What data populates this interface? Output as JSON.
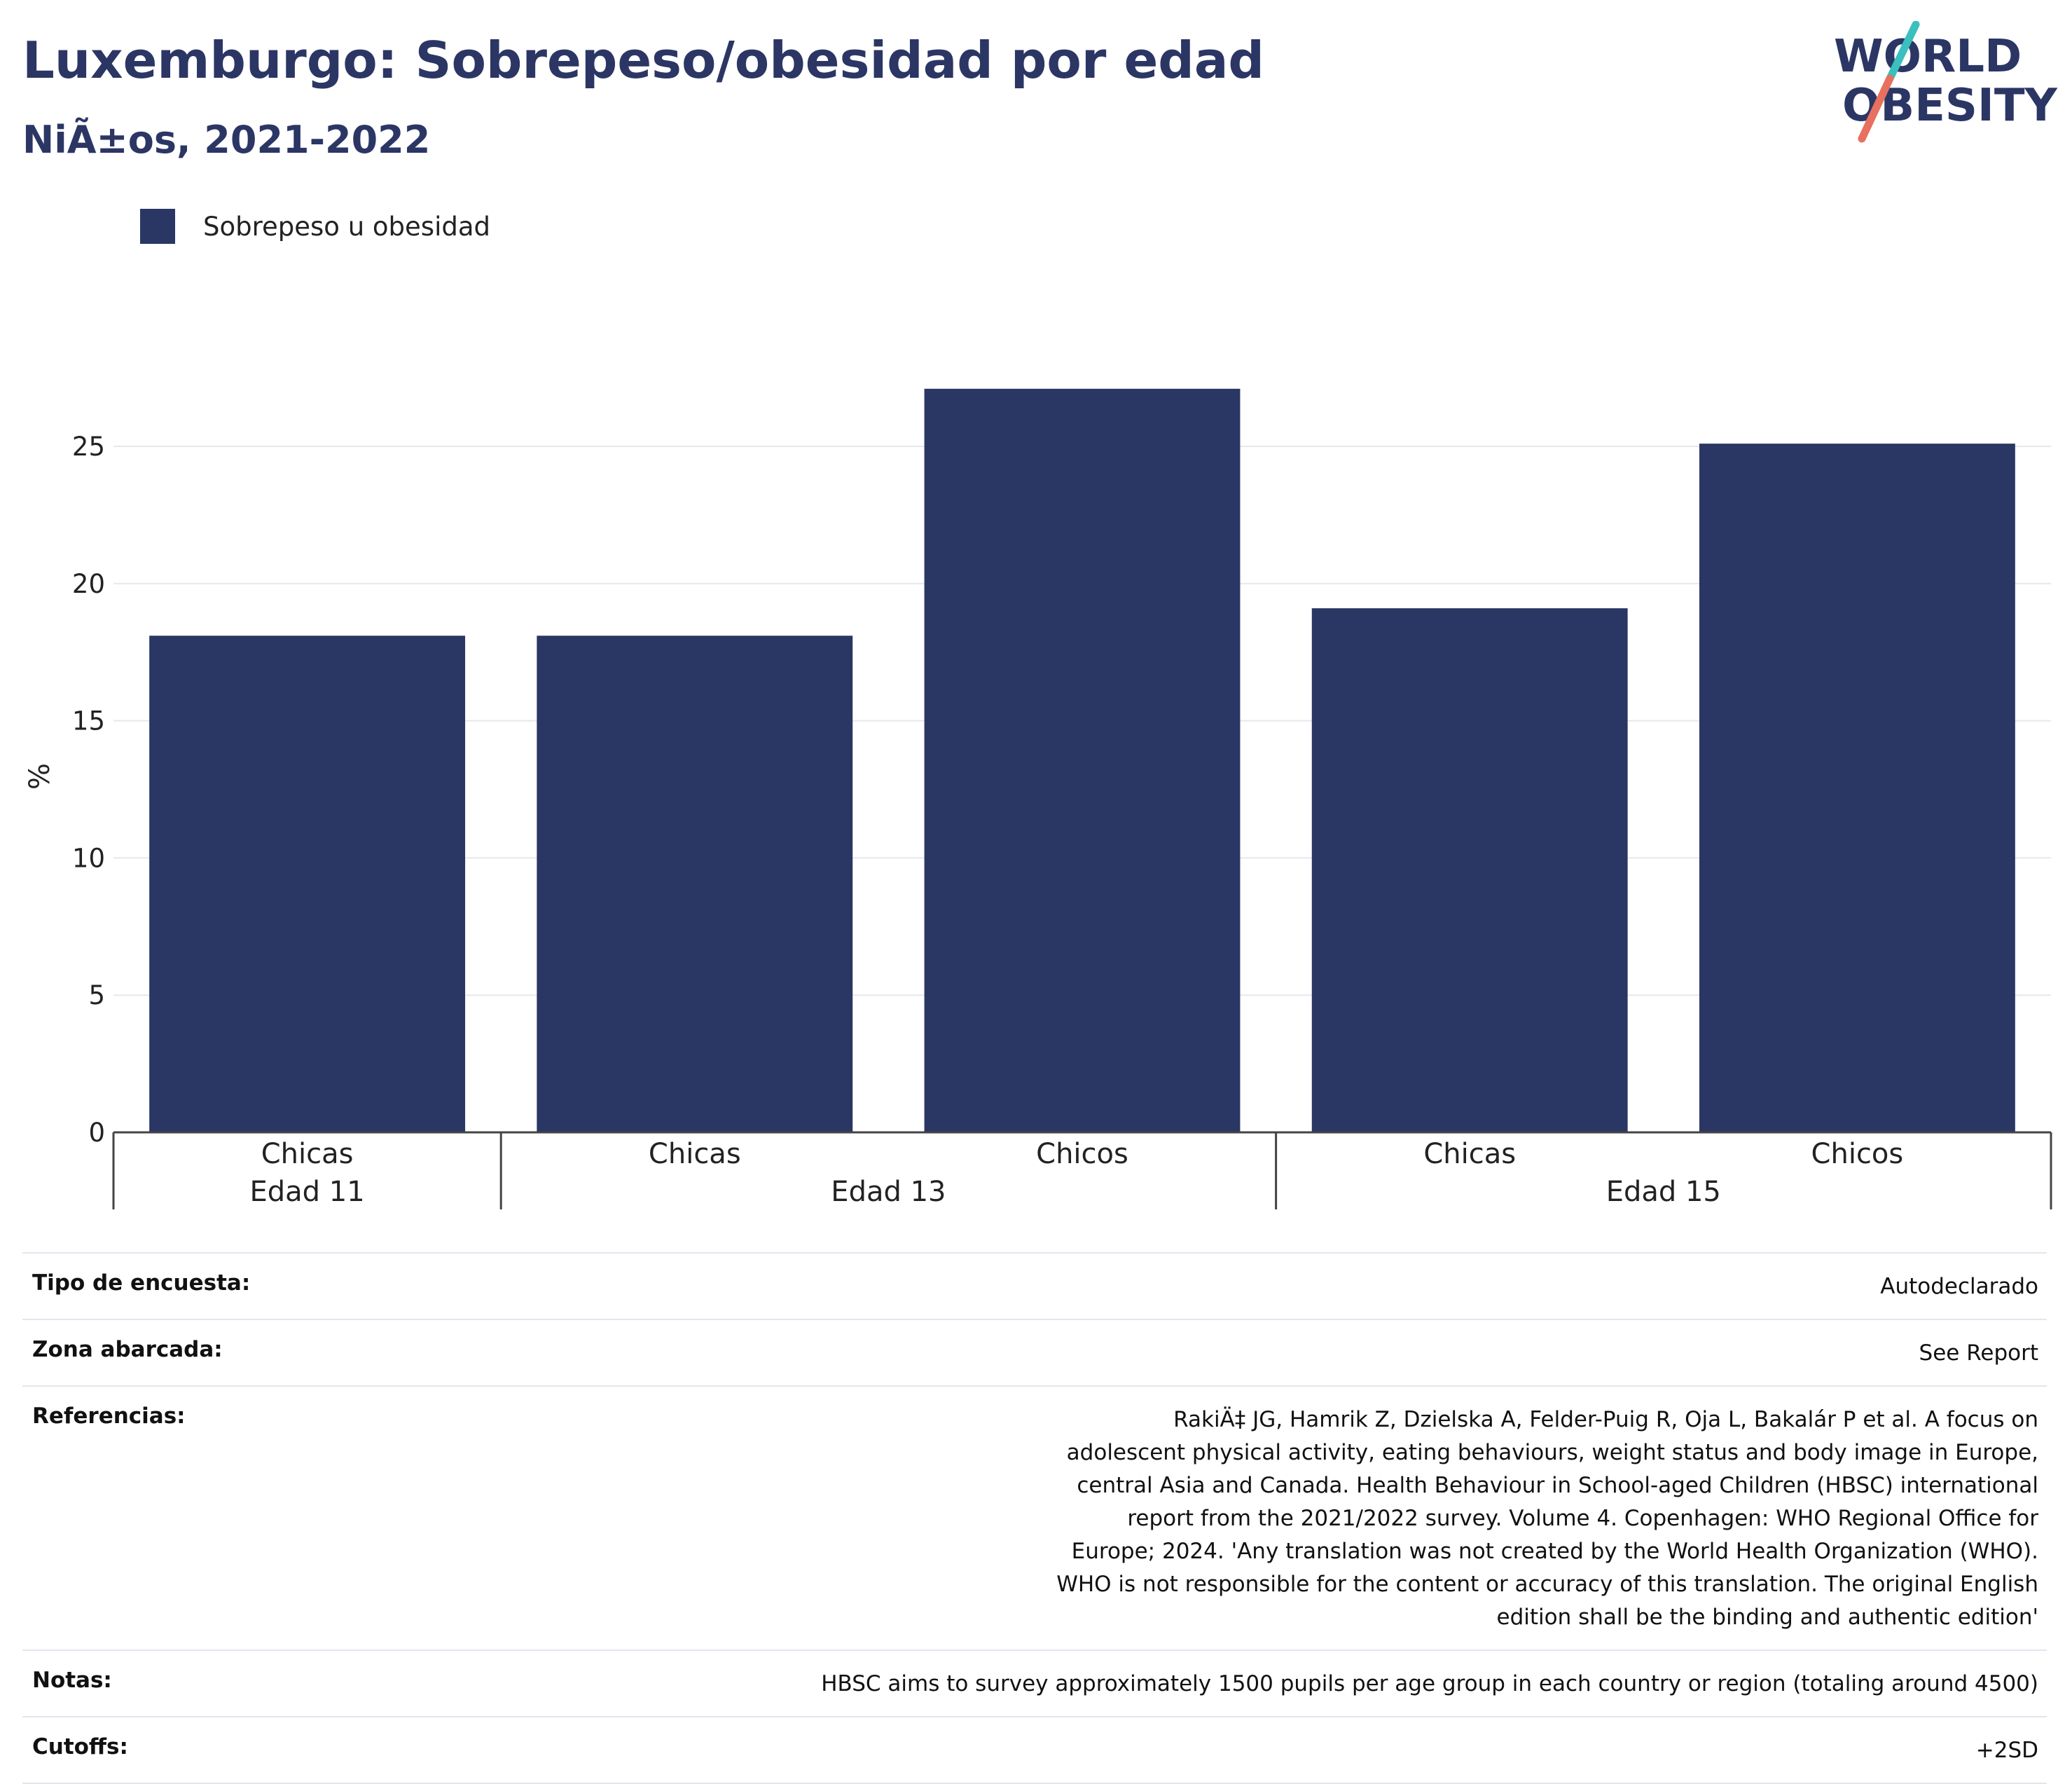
{
  "header": {
    "title": "Luxemburgo: Sobrepeso/obesidad por edad",
    "subtitle": "NiÃ±os, 2021-2022"
  },
  "logo": {
    "line1": "WORLD",
    "line2": "OBESITY",
    "colors": {
      "text": "#2b3664",
      "slash_teal": "#3bbfbf",
      "slash_coral": "#e8705f"
    }
  },
  "chart_data": {
    "type": "bar",
    "categories": [
      {
        "label": "Chicas",
        "group": "Edad 11"
      },
      {
        "label": "Chicas",
        "group": "Edad 13"
      },
      {
        "label": "Chicos",
        "group": "Edad 13"
      },
      {
        "label": "Chicas",
        "group": "Edad 15"
      },
      {
        "label": "Chicos",
        "group": "Edad 15"
      }
    ],
    "groups": [
      "Edad 11",
      "Edad 13",
      "Edad 15"
    ],
    "series": [
      {
        "name": "Sobrepeso u obesidad",
        "values": [
          18.1,
          18.1,
          27.1,
          19.1,
          25.1
        ],
        "color": "#2a3664"
      }
    ],
    "ylabel": "%",
    "ylim": [
      0,
      28.5
    ],
    "yticks": [
      0,
      5,
      10,
      15,
      20,
      25
    ],
    "grid": true,
    "legend_position": "top-left"
  },
  "info": [
    {
      "key": "Tipo de encuesta:",
      "value": "Autodeclarado"
    },
    {
      "key": "Zona abarcada:",
      "value": "See Report"
    },
    {
      "key": "Referencias:",
      "value": "RakiÄ‡ JG, Hamrik Z, Dzielska A, Felder-Puig R, Oja L, Bakalár P et al. A focus on adolescent physical activity, eating behaviours, weight status and body image in Europe, central Asia and Canada. Health Behaviour in School-aged Children (HBSC) international report from the 2021/2022 survey. Volume 4. Copenhagen: WHO Regional Office for Europe; 2024. 'Any translation was not created by the World Health Organization (WHO). WHO is not responsible for the content or accuracy of this translation. The original English edition shall be the binding and authentic edition'"
    },
    {
      "key": "Notas:",
      "value": "HBSC aims to survey approximately 1500 pupils per age group in each country or region (totaling around 4500)"
    },
    {
      "key": "Cutoffs:",
      "value": "+2SD"
    }
  ]
}
